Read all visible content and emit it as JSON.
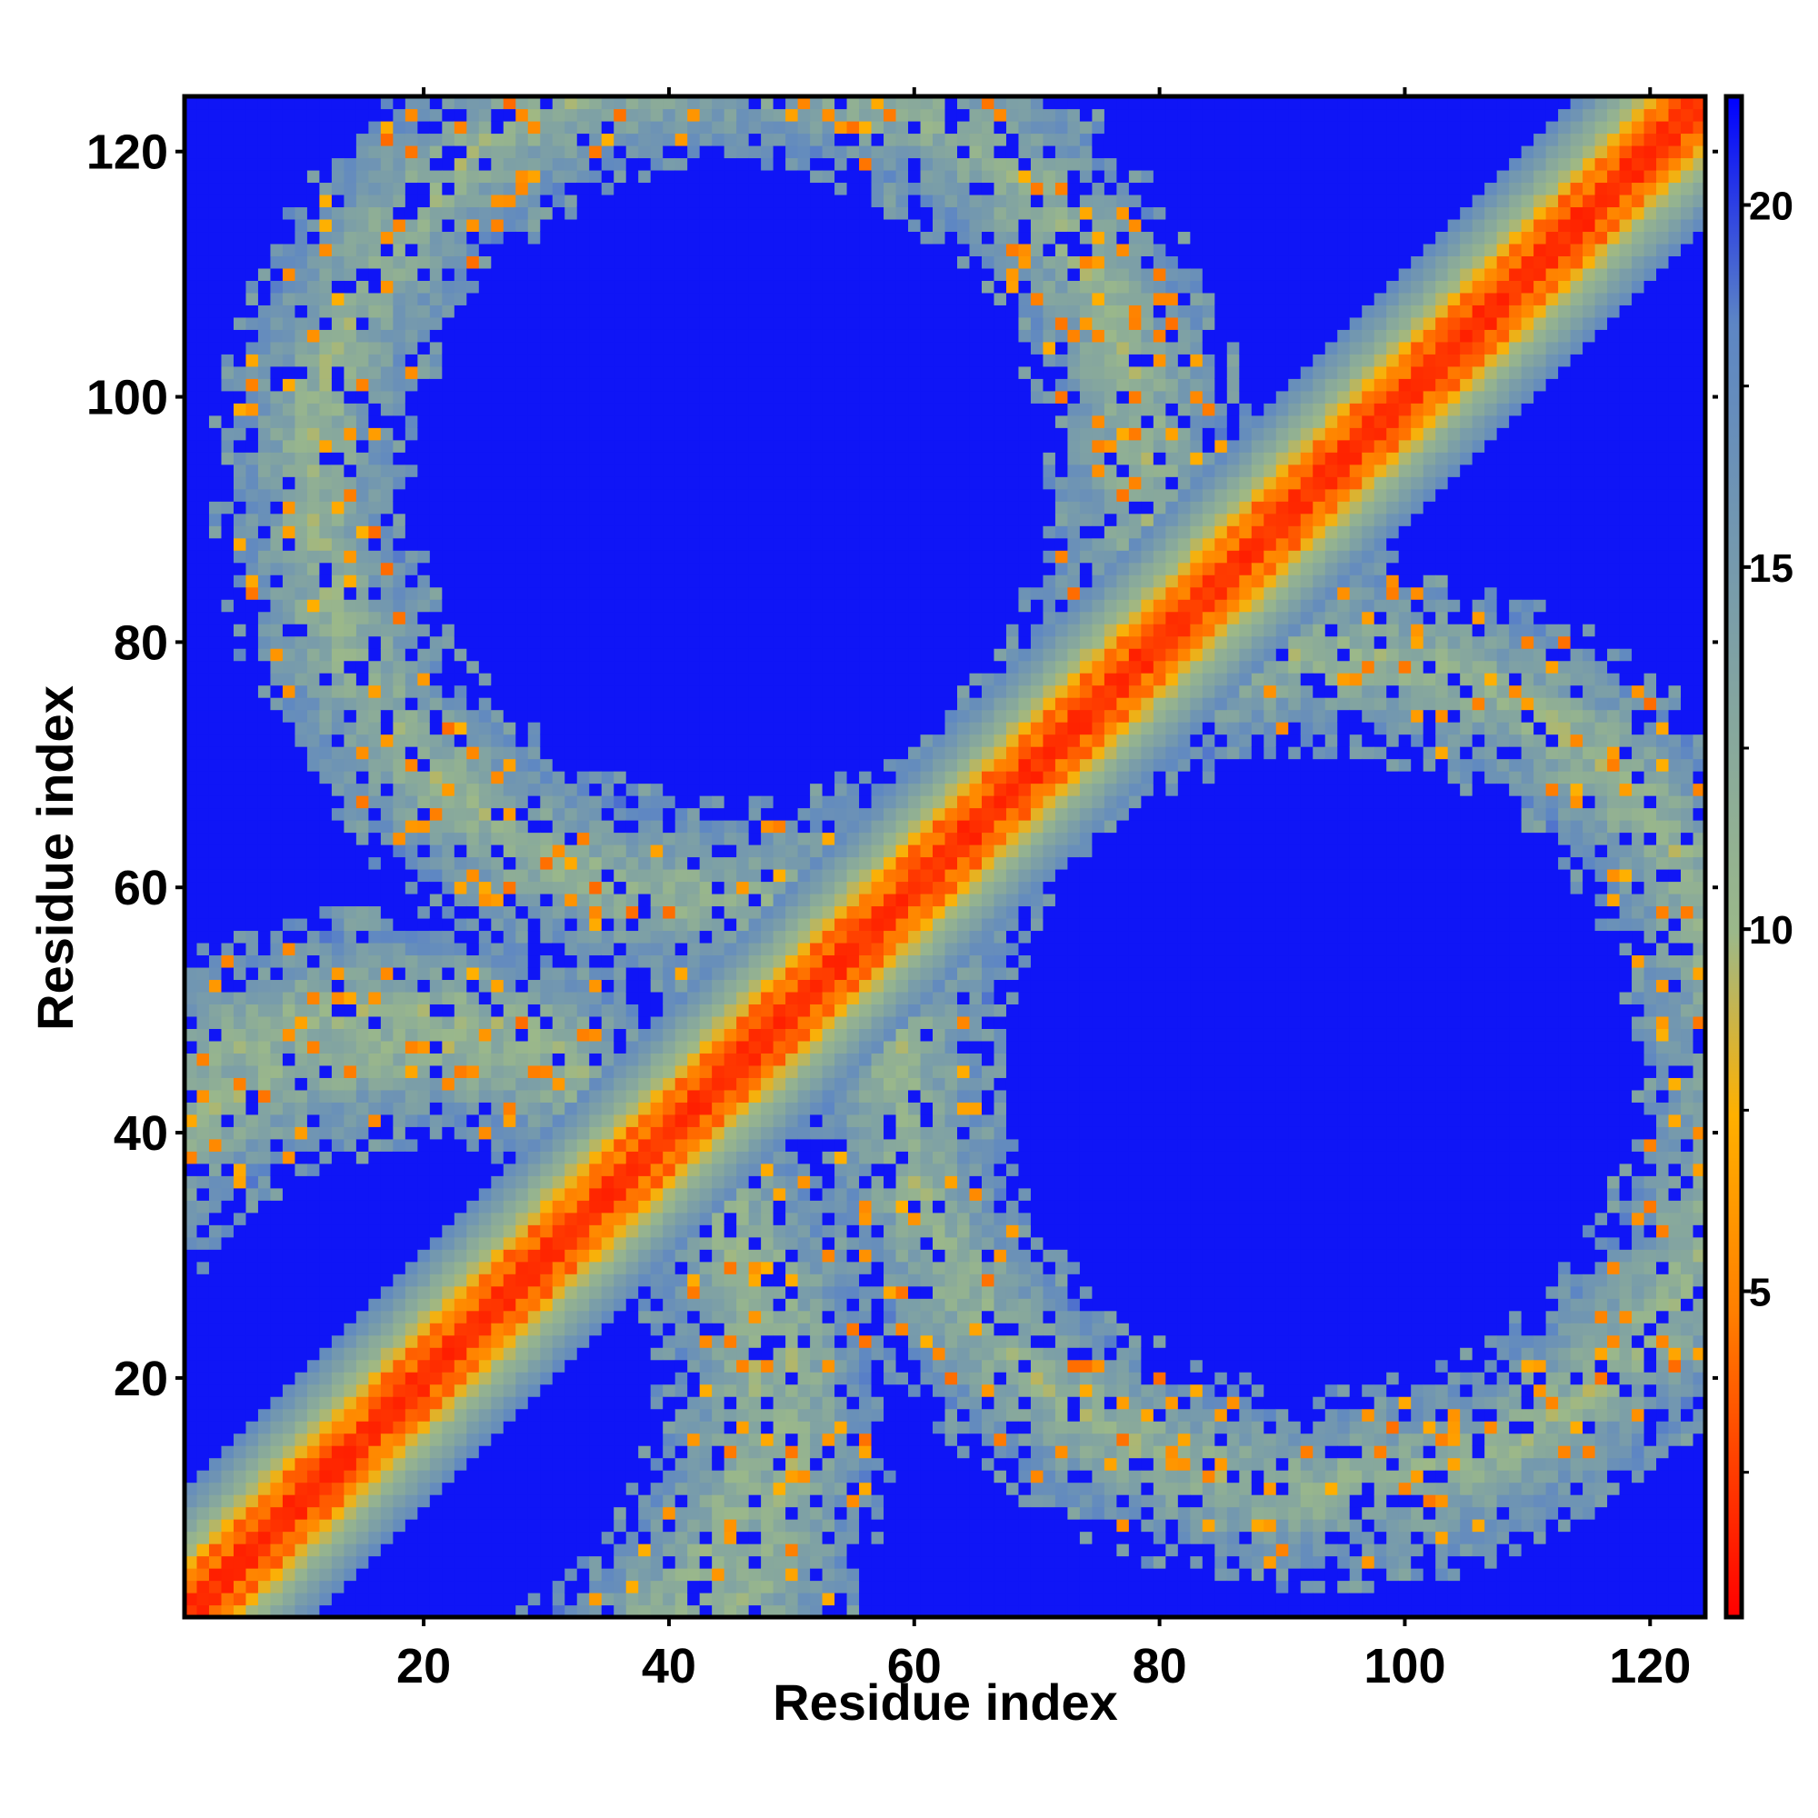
{
  "chart_data": {
    "type": "heatmap",
    "title": "",
    "xlabel": "Residue index",
    "ylabel": "Residue index",
    "xlim": [
      1,
      124
    ],
    "ylim": [
      1,
      124
    ],
    "n_residues": 124,
    "x_ticks": [
      20,
      40,
      60,
      80,
      100,
      120
    ],
    "y_ticks": [
      20,
      40,
      60,
      80,
      100,
      120
    ],
    "colorbar": {
      "range": [
        0.5,
        21.5
      ],
      "ticks": [
        5,
        10,
        15,
        20
      ],
      "colors": [
        "#ff0000",
        "#ff7f00",
        "#ffb000",
        "#9bb88a",
        "#5d86c4",
        "#0000ff"
      ],
      "stops": [
        0.0,
        0.2,
        0.33,
        0.45,
        0.85,
        1.0
      ],
      "cap_value": 21.0
    },
    "grid": false,
    "legend": "right colorbar",
    "description_features": {
      "diagonal_band_halfwidth": 10,
      "contact_rings": [
        {
          "center": [
            45,
            93
          ],
          "radius": 34
        },
        {
          "center": [
            93,
            45
          ],
          "radius": 34
        },
        {
          "center": [
            17,
            20
          ],
          "radius": 30
        },
        {
          "center": [
            20,
            17
          ],
          "radius": 30
        }
      ]
    }
  }
}
